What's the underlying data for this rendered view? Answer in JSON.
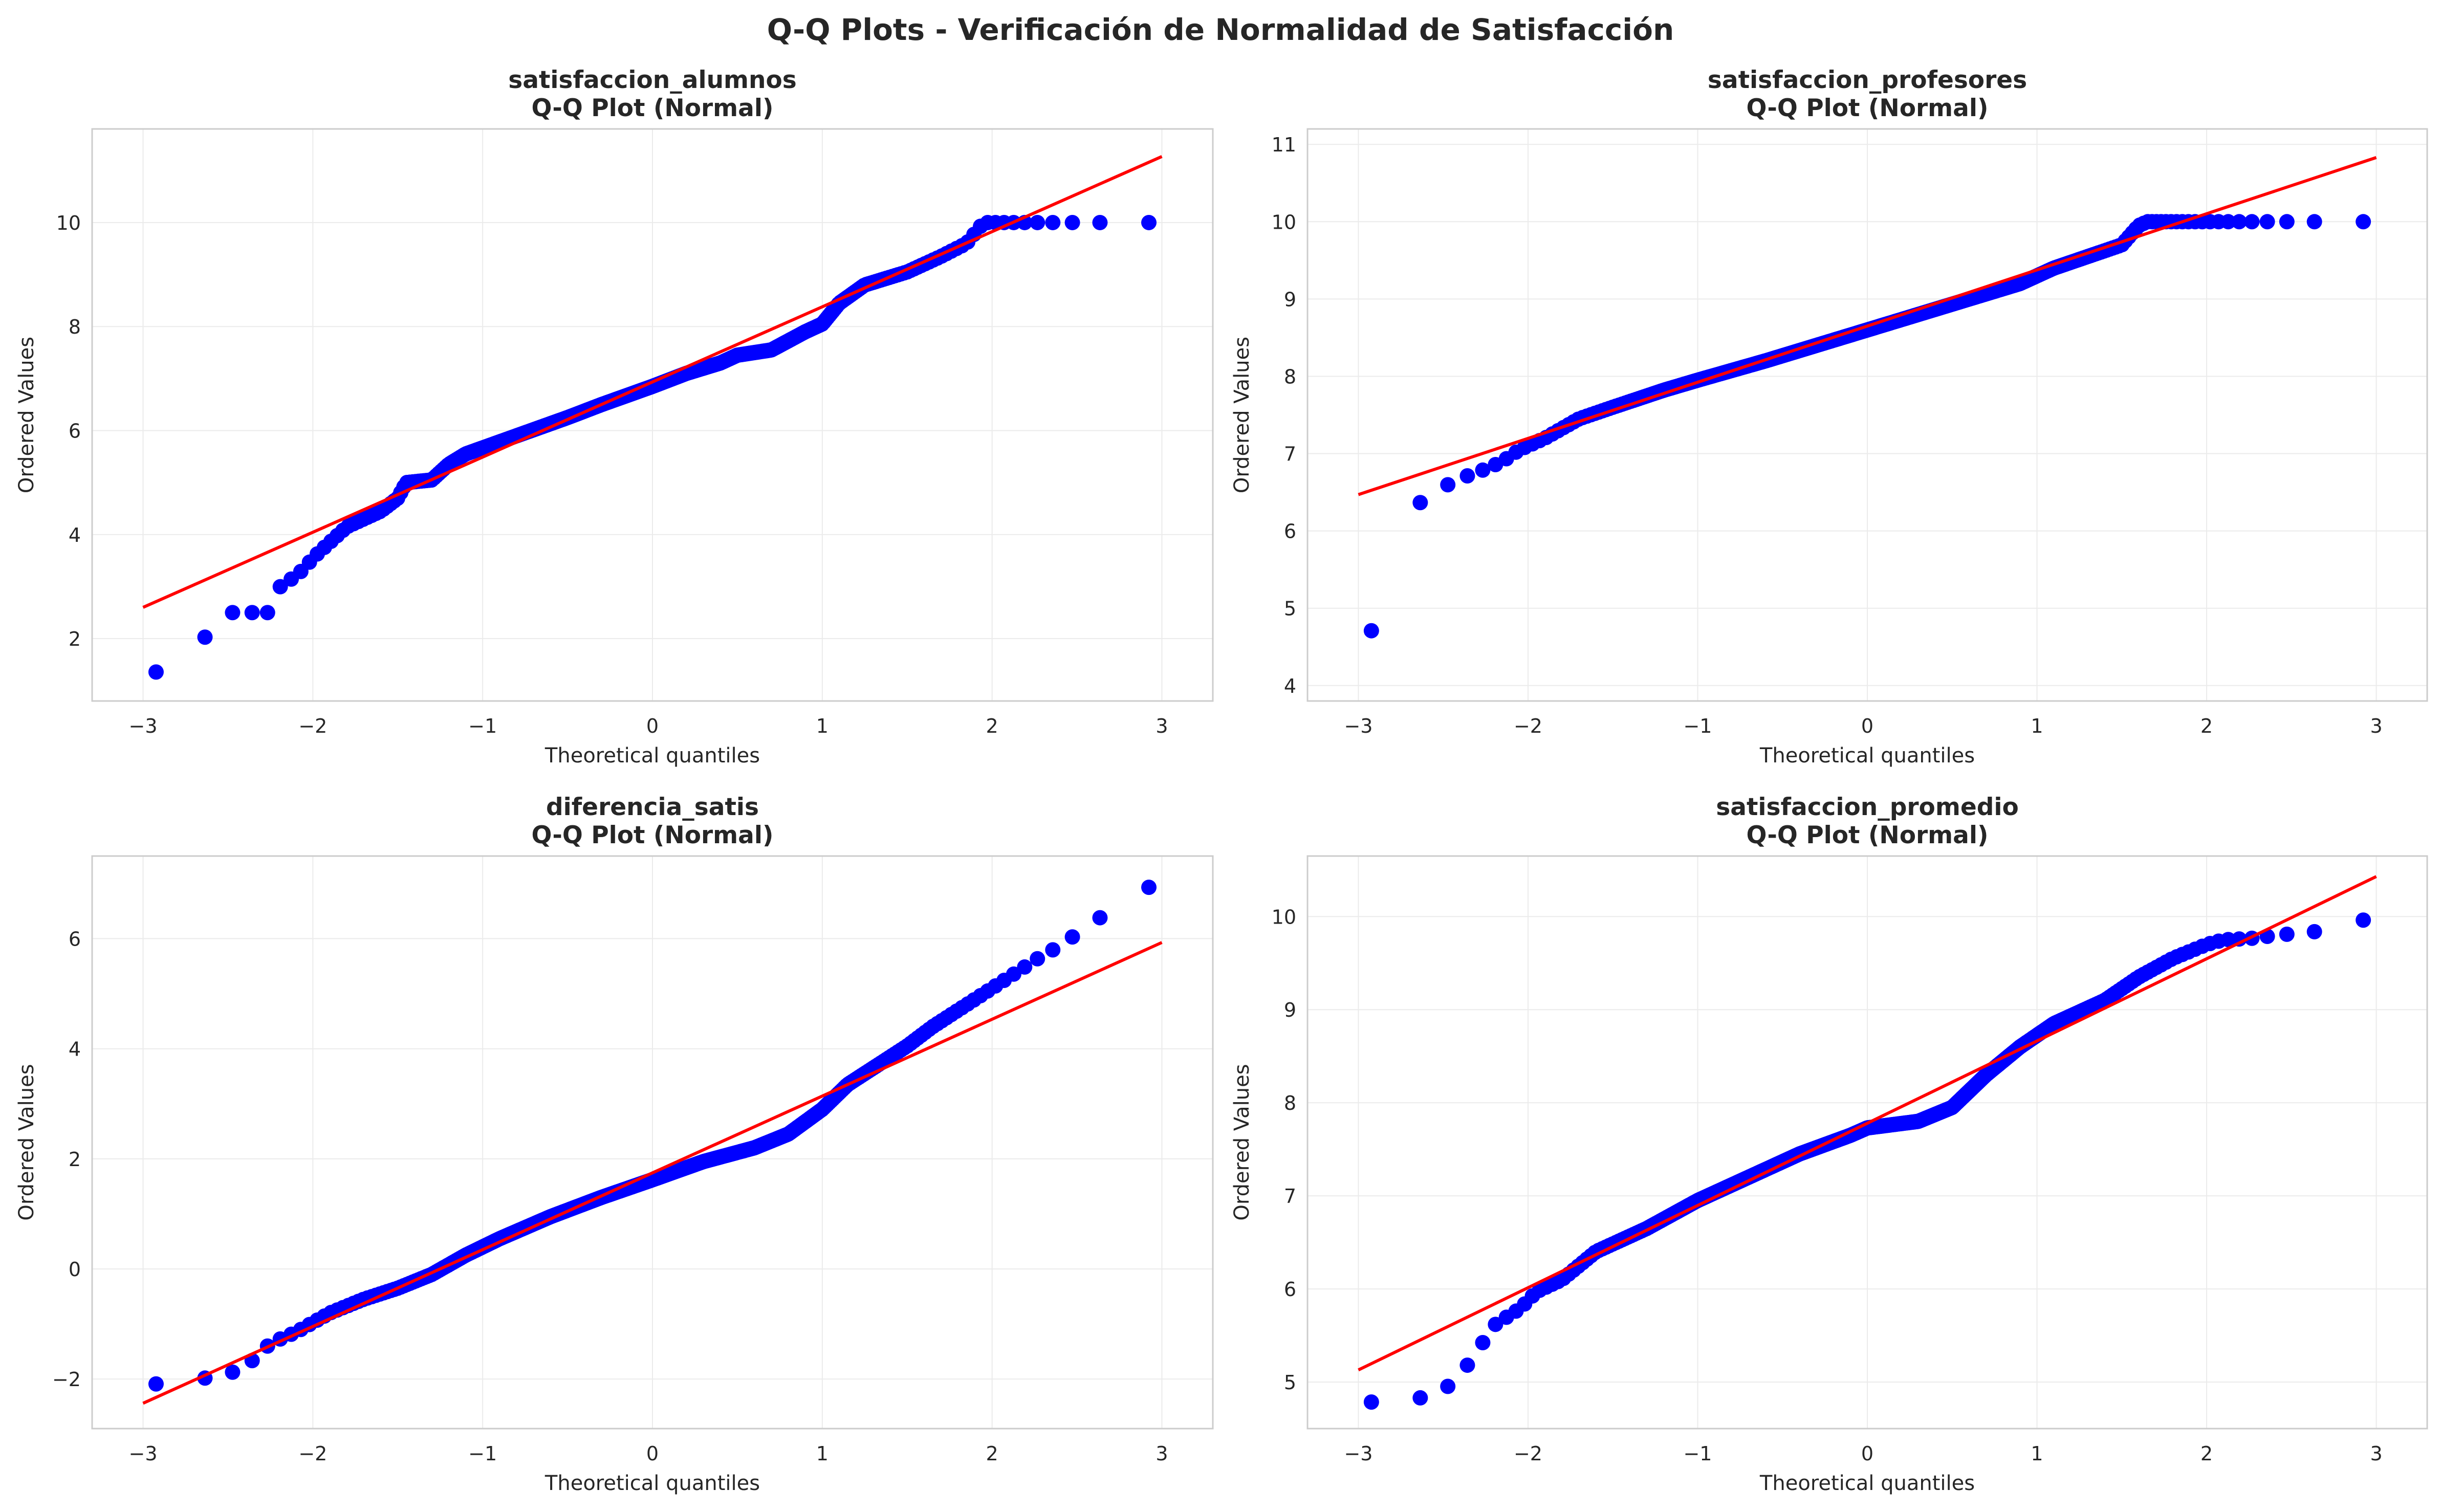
{
  "figure_title": "Q-Q Plots - Verificación de Normalidad de Satisfacción",
  "colors": {
    "points": "#0000ff",
    "fit_line": "#ff0000",
    "grid": "#ebebeb",
    "frame": "#cccccc",
    "text": "#262626"
  },
  "chart_data": [
    {
      "type": "scatter",
      "title": "satisfaccion_alumnos",
      "subtitle": "Q-Q Plot (Normal)",
      "xlabel": "Theoretical quantiles",
      "ylabel": "Ordered Values",
      "xlim": [
        -3.3,
        3.3
      ],
      "ylim": [
        0.8,
        11.8
      ],
      "xticks": [
        -3,
        -2,
        -1,
        0,
        1,
        2,
        3
      ],
      "yticks": [
        2,
        4,
        6,
        8,
        10
      ],
      "grid": true,
      "fit_line": [
        [
          -3,
          2.6
        ],
        [
          3,
          11.27
        ]
      ],
      "points_quantiles": [
        [
          -3.0,
          1.25
        ],
        [
          -2.7,
          1.67
        ],
        [
          -2.55,
          2.5
        ],
        [
          -2.43,
          2.5
        ],
        [
          -2.33,
          2.5
        ],
        [
          -2.25,
          2.5
        ],
        [
          -2.18,
          3.1
        ],
        [
          -2.12,
          3.15
        ],
        [
          -2.05,
          3.35
        ],
        [
          -2.0,
          3.55
        ],
        [
          -1.9,
          3.85
        ],
        [
          -1.8,
          4.15
        ],
        [
          -1.6,
          4.45
        ],
        [
          -1.5,
          4.7
        ],
        [
          -1.45,
          5.0
        ],
        [
          -1.3,
          5.05
        ],
        [
          -1.2,
          5.35
        ],
        [
          -1.1,
          5.55
        ],
        [
          -0.8,
          5.9
        ],
        [
          -0.5,
          6.25
        ],
        [
          -0.3,
          6.5
        ],
        [
          0.0,
          6.85
        ],
        [
          0.2,
          7.1
        ],
        [
          0.4,
          7.3
        ],
        [
          0.5,
          7.45
        ],
        [
          0.7,
          7.55
        ],
        [
          0.9,
          7.9
        ],
        [
          1.0,
          8.05
        ],
        [
          1.1,
          8.45
        ],
        [
          1.25,
          8.8
        ],
        [
          1.5,
          9.05
        ],
        [
          1.7,
          9.35
        ],
        [
          1.85,
          9.6
        ],
        [
          1.95,
          10.0
        ],
        [
          2.05,
          10.0
        ],
        [
          2.15,
          10.0
        ],
        [
          2.25,
          10.0
        ],
        [
          2.35,
          10.0
        ],
        [
          2.5,
          10.0
        ],
        [
          2.7,
          10.0
        ],
        [
          3.0,
          10.0
        ]
      ]
    },
    {
      "type": "scatter",
      "title": "satisfaccion_profesores",
      "subtitle": "Q-Q Plot (Normal)",
      "xlabel": "Theoretical quantiles",
      "ylabel": "Ordered Values",
      "xlim": [
        -3.3,
        3.3
      ],
      "ylim": [
        3.8,
        11.2
      ],
      "xticks": [
        -3,
        -2,
        -1,
        0,
        1,
        2,
        3
      ],
      "yticks": [
        4,
        5,
        6,
        7,
        8,
        9,
        10,
        11
      ],
      "grid": true,
      "fit_line": [
        [
          -3,
          6.47
        ],
        [
          3,
          10.83
        ]
      ],
      "points_quantiles": [
        [
          -3.0,
          4.18
        ],
        [
          -2.7,
          6.25
        ],
        [
          -2.55,
          6.52
        ],
        [
          -2.45,
          6.62
        ],
        [
          -2.35,
          6.72
        ],
        [
          -2.25,
          6.8
        ],
        [
          -2.15,
          6.9
        ],
        [
          -2.05,
          7.05
        ],
        [
          -1.9,
          7.2
        ],
        [
          -1.7,
          7.45
        ],
        [
          -1.5,
          7.6
        ],
        [
          -1.2,
          7.82
        ],
        [
          -1.0,
          7.95
        ],
        [
          -0.6,
          8.2
        ],
        [
          -0.3,
          8.4
        ],
        [
          0.0,
          8.6
        ],
        [
          0.3,
          8.8
        ],
        [
          0.6,
          9.0
        ],
        [
          0.9,
          9.2
        ],
        [
          1.1,
          9.4
        ],
        [
          1.3,
          9.55
        ],
        [
          1.5,
          9.7
        ],
        [
          1.6,
          9.95
        ],
        [
          1.65,
          10.0
        ],
        [
          1.8,
          10.0
        ],
        [
          1.95,
          10.0
        ],
        [
          2.1,
          10.0
        ],
        [
          2.25,
          10.0
        ],
        [
          2.4,
          10.0
        ],
        [
          2.5,
          10.0
        ],
        [
          2.7,
          10.0
        ],
        [
          3.0,
          10.0
        ]
      ]
    },
    {
      "type": "scatter",
      "title": "diferencia_satis",
      "subtitle": "Q-Q Plot (Normal)",
      "xlabel": "Theoretical quantiles",
      "ylabel": "Ordered Values",
      "xlim": [
        -3.3,
        3.3
      ],
      "ylim": [
        -2.9,
        7.5
      ],
      "xticks": [
        -3,
        -2,
        -1,
        0,
        1,
        2,
        3
      ],
      "yticks": [
        -2,
        0,
        2,
        4,
        6
      ],
      "grid": true,
      "fit_line": [
        [
          -3,
          -2.44
        ],
        [
          3,
          5.93
        ]
      ],
      "points_quantiles": [
        [
          -3.0,
          -2.12
        ],
        [
          -2.7,
          -2.0
        ],
        [
          -2.55,
          -1.96
        ],
        [
          -2.45,
          -1.85
        ],
        [
          -2.35,
          -1.65
        ],
        [
          -2.25,
          -1.35
        ],
        [
          -2.1,
          -1.15
        ],
        [
          -1.9,
          -0.8
        ],
        [
          -1.7,
          -0.55
        ],
        [
          -1.5,
          -0.35
        ],
        [
          -1.3,
          -0.1
        ],
        [
          -1.1,
          0.25
        ],
        [
          -0.9,
          0.55
        ],
        [
          -0.6,
          0.95
        ],
        [
          -0.3,
          1.3
        ],
        [
          0.0,
          1.62
        ],
        [
          0.3,
          1.95
        ],
        [
          0.6,
          2.2
        ],
        [
          0.8,
          2.45
        ],
        [
          1.0,
          2.9
        ],
        [
          1.15,
          3.35
        ],
        [
          1.3,
          3.65
        ],
        [
          1.5,
          4.05
        ],
        [
          1.65,
          4.4
        ],
        [
          1.8,
          4.7
        ],
        [
          1.95,
          5.0
        ],
        [
          2.1,
          5.3
        ],
        [
          2.2,
          5.5
        ],
        [
          2.3,
          5.7
        ],
        [
          2.42,
          5.9
        ],
        [
          2.55,
          6.22
        ],
        [
          2.7,
          6.5
        ],
        [
          3.0,
          7.08
        ]
      ]
    },
    {
      "type": "scatter",
      "title": "satisfaccion_promedio",
      "subtitle": "Q-Q Plot (Normal)",
      "xlabel": "Theoretical quantiles",
      "ylabel": "Ordered Values",
      "xlim": [
        -3.3,
        3.3
      ],
      "ylim": [
        4.5,
        10.65
      ],
      "xticks": [
        -3,
        -2,
        -1,
        0,
        1,
        2,
        3
      ],
      "yticks": [
        5,
        6,
        7,
        8,
        9,
        10
      ],
      "grid": true,
      "fit_line": [
        [
          -3,
          5.13
        ],
        [
          3,
          10.43
        ]
      ],
      "points_quantiles": [
        [
          -3.0,
          4.78
        ],
        [
          -2.7,
          4.8
        ],
        [
          -2.55,
          4.87
        ],
        [
          -2.43,
          5.0
        ],
        [
          -2.33,
          5.25
        ],
        [
          -2.25,
          5.47
        ],
        [
          -2.18,
          5.65
        ],
        [
          -2.1,
          5.72
        ],
        [
          -2.03,
          5.82
        ],
        [
          -1.95,
          5.97
        ],
        [
          -1.8,
          6.1
        ],
        [
          -1.6,
          6.4
        ],
        [
          -1.3,
          6.65
        ],
        [
          -1.0,
          6.95
        ],
        [
          -0.7,
          7.2
        ],
        [
          -0.4,
          7.45
        ],
        [
          -0.1,
          7.65
        ],
        [
          0.0,
          7.73
        ],
        [
          0.3,
          7.8
        ],
        [
          0.5,
          7.95
        ],
        [
          0.7,
          8.3
        ],
        [
          0.9,
          8.6
        ],
        [
          1.1,
          8.85
        ],
        [
          1.4,
          9.1
        ],
        [
          1.6,
          9.35
        ],
        [
          1.8,
          9.55
        ],
        [
          2.0,
          9.7
        ],
        [
          2.1,
          9.75
        ],
        [
          2.2,
          9.76
        ],
        [
          2.3,
          9.77
        ],
        [
          2.4,
          9.8
        ],
        [
          2.55,
          9.82
        ],
        [
          2.7,
          9.85
        ],
        [
          3.0,
          10.0
        ]
      ]
    }
  ]
}
